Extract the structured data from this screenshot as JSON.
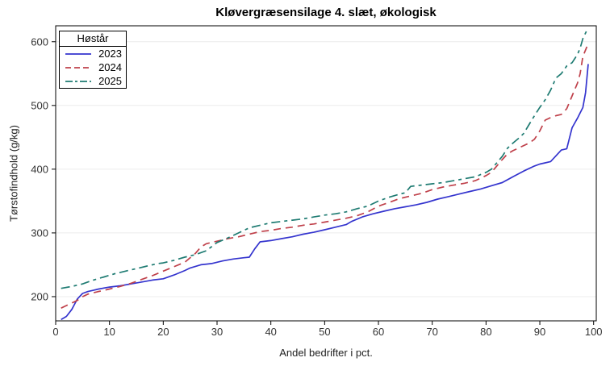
{
  "page": {
    "background": "#ffffff"
  },
  "colors": {
    "grid": "#ececec",
    "frame": "#000000",
    "tick": "#000000",
    "tick_label": "#333333",
    "series_2023": "#3434ce",
    "series_2024": "#bf404a",
    "series_2025": "#1e7b72"
  },
  "legend": {
    "title": "Høstår"
  },
  "chart_data": {
    "type": "line",
    "title": "Kløvergræsensilage 4. slæt, økologisk",
    "xlabel": "Andel bedrifter i pct.",
    "ylabel": "Tørstofindhold (g/kg)",
    "xlim": [
      0,
      100
    ],
    "ylim": [
      162,
      625
    ],
    "xticks": [
      0,
      10,
      20,
      30,
      40,
      50,
      60,
      70,
      80,
      90,
      100
    ],
    "yticks": [
      200,
      300,
      400,
      500,
      600
    ],
    "grid": "horizontal-only",
    "legend_title": "Høstår",
    "legend_position": "top-left-inside",
    "series": [
      {
        "name": "2023",
        "color": "#3434ce",
        "dash": "solid",
        "points": [
          [
            1,
            164
          ],
          [
            2,
            169
          ],
          [
            3,
            180
          ],
          [
            4,
            196
          ],
          [
            5,
            205
          ],
          [
            6,
            208
          ],
          [
            7,
            210
          ],
          [
            8,
            212
          ],
          [
            10,
            215
          ],
          [
            12,
            217
          ],
          [
            14,
            220
          ],
          [
            16,
            223
          ],
          [
            18,
            226
          ],
          [
            20,
            228
          ],
          [
            22,
            234
          ],
          [
            24,
            241
          ],
          [
            25,
            245
          ],
          [
            27,
            250
          ],
          [
            29,
            252
          ],
          [
            31,
            256
          ],
          [
            33,
            259
          ],
          [
            35,
            261
          ],
          [
            36,
            262
          ],
          [
            37,
            275
          ],
          [
            38,
            286
          ],
          [
            40,
            288
          ],
          [
            42,
            291
          ],
          [
            44,
            294
          ],
          [
            46,
            298
          ],
          [
            48,
            301
          ],
          [
            50,
            305
          ],
          [
            52,
            309
          ],
          [
            54,
            313
          ],
          [
            55,
            318
          ],
          [
            57,
            325
          ],
          [
            59,
            330
          ],
          [
            61,
            334
          ],
          [
            63,
            338
          ],
          [
            65,
            341
          ],
          [
            67,
            344
          ],
          [
            69,
            348
          ],
          [
            71,
            353
          ],
          [
            73,
            357
          ],
          [
            75,
            361
          ],
          [
            77,
            365
          ],
          [
            79,
            369
          ],
          [
            81,
            374
          ],
          [
            83,
            379
          ],
          [
            85,
            388
          ],
          [
            87,
            397
          ],
          [
            89,
            405
          ],
          [
            90,
            408
          ],
          [
            91,
            410
          ],
          [
            92,
            412
          ],
          [
            93,
            421
          ],
          [
            94,
            430
          ],
          [
            95,
            432
          ],
          [
            96,
            465
          ],
          [
            97,
            480
          ],
          [
            98,
            497
          ],
          [
            98.5,
            520
          ],
          [
            99,
            565
          ]
        ]
      },
      {
        "name": "2024",
        "color": "#bf404a",
        "dash": "dashed",
        "points": [
          [
            1,
            182
          ],
          [
            2,
            186
          ],
          [
            3,
            190
          ],
          [
            4,
            194
          ],
          [
            5,
            200
          ],
          [
            6,
            204
          ],
          [
            7,
            206
          ],
          [
            8,
            208
          ],
          [
            10,
            212
          ],
          [
            12,
            216
          ],
          [
            14,
            221
          ],
          [
            16,
            227
          ],
          [
            18,
            233
          ],
          [
            20,
            240
          ],
          [
            22,
            247
          ],
          [
            24,
            254
          ],
          [
            26,
            268
          ],
          [
            27,
            278
          ],
          [
            28,
            283
          ],
          [
            30,
            287
          ],
          [
            32,
            291
          ],
          [
            34,
            294
          ],
          [
            36,
            298
          ],
          [
            38,
            302
          ],
          [
            40,
            304
          ],
          [
            42,
            307
          ],
          [
            44,
            309
          ],
          [
            46,
            312
          ],
          [
            48,
            314
          ],
          [
            50,
            317
          ],
          [
            52,
            320
          ],
          [
            54,
            323
          ],
          [
            56,
            327
          ],
          [
            58,
            333
          ],
          [
            60,
            342
          ],
          [
            62,
            348
          ],
          [
            64,
            354
          ],
          [
            66,
            358
          ],
          [
            68,
            362
          ],
          [
            70,
            368
          ],
          [
            72,
            372
          ],
          [
            74,
            375
          ],
          [
            76,
            378
          ],
          [
            78,
            382
          ],
          [
            80,
            390
          ],
          [
            81,
            395
          ],
          [
            82,
            405
          ],
          [
            83,
            415
          ],
          [
            84,
            424
          ],
          [
            85,
            429
          ],
          [
            86,
            433
          ],
          [
            87,
            437
          ],
          [
            88,
            441
          ],
          [
            89,
            447
          ],
          [
            90,
            460
          ],
          [
            91,
            477
          ],
          [
            92,
            481
          ],
          [
            93,
            484
          ],
          [
            94,
            486
          ],
          [
            95,
            495
          ],
          [
            96,
            515
          ],
          [
            97,
            535
          ],
          [
            97.5,
            550
          ],
          [
            98,
            577
          ],
          [
            98.5,
            587
          ],
          [
            99,
            597
          ]
        ]
      },
      {
        "name": "2025",
        "color": "#1e7b72",
        "dash": "dash-dot",
        "points": [
          [
            1,
            213
          ],
          [
            3,
            216
          ],
          [
            5,
            220
          ],
          [
            7,
            226
          ],
          [
            9,
            231
          ],
          [
            11,
            236
          ],
          [
            13,
            240
          ],
          [
            15,
            244
          ],
          [
            17,
            248
          ],
          [
            19,
            252
          ],
          [
            20,
            253
          ],
          [
            22,
            257
          ],
          [
            24,
            262
          ],
          [
            26,
            266
          ],
          [
            28,
            272
          ],
          [
            30,
            285
          ],
          [
            32,
            292
          ],
          [
            34,
            300
          ],
          [
            36,
            308
          ],
          [
            38,
            312
          ],
          [
            40,
            316
          ],
          [
            42,
            318
          ],
          [
            44,
            320
          ],
          [
            46,
            322
          ],
          [
            48,
            325
          ],
          [
            50,
            328
          ],
          [
            52,
            330
          ],
          [
            54,
            333
          ],
          [
            56,
            338
          ],
          [
            58,
            342
          ],
          [
            60,
            350
          ],
          [
            62,
            356
          ],
          [
            64,
            361
          ],
          [
            65,
            363
          ],
          [
            66,
            373
          ],
          [
            68,
            375
          ],
          [
            70,
            377
          ],
          [
            72,
            379
          ],
          [
            74,
            382
          ],
          [
            76,
            385
          ],
          [
            78,
            388
          ],
          [
            80,
            395
          ],
          [
            81,
            400
          ],
          [
            82,
            410
          ],
          [
            83,
            420
          ],
          [
            84,
            433
          ],
          [
            85,
            441
          ],
          [
            86,
            448
          ],
          [
            87,
            456
          ],
          [
            88,
            470
          ],
          [
            89,
            484
          ],
          [
            90,
            497
          ],
          [
            91,
            509
          ],
          [
            92,
            524
          ],
          [
            93,
            543
          ],
          [
            94,
            550
          ],
          [
            95,
            562
          ],
          [
            96,
            567
          ],
          [
            97,
            580
          ],
          [
            97.5,
            590
          ],
          [
            98,
            605
          ],
          [
            98.7,
            617
          ]
        ]
      }
    ]
  }
}
